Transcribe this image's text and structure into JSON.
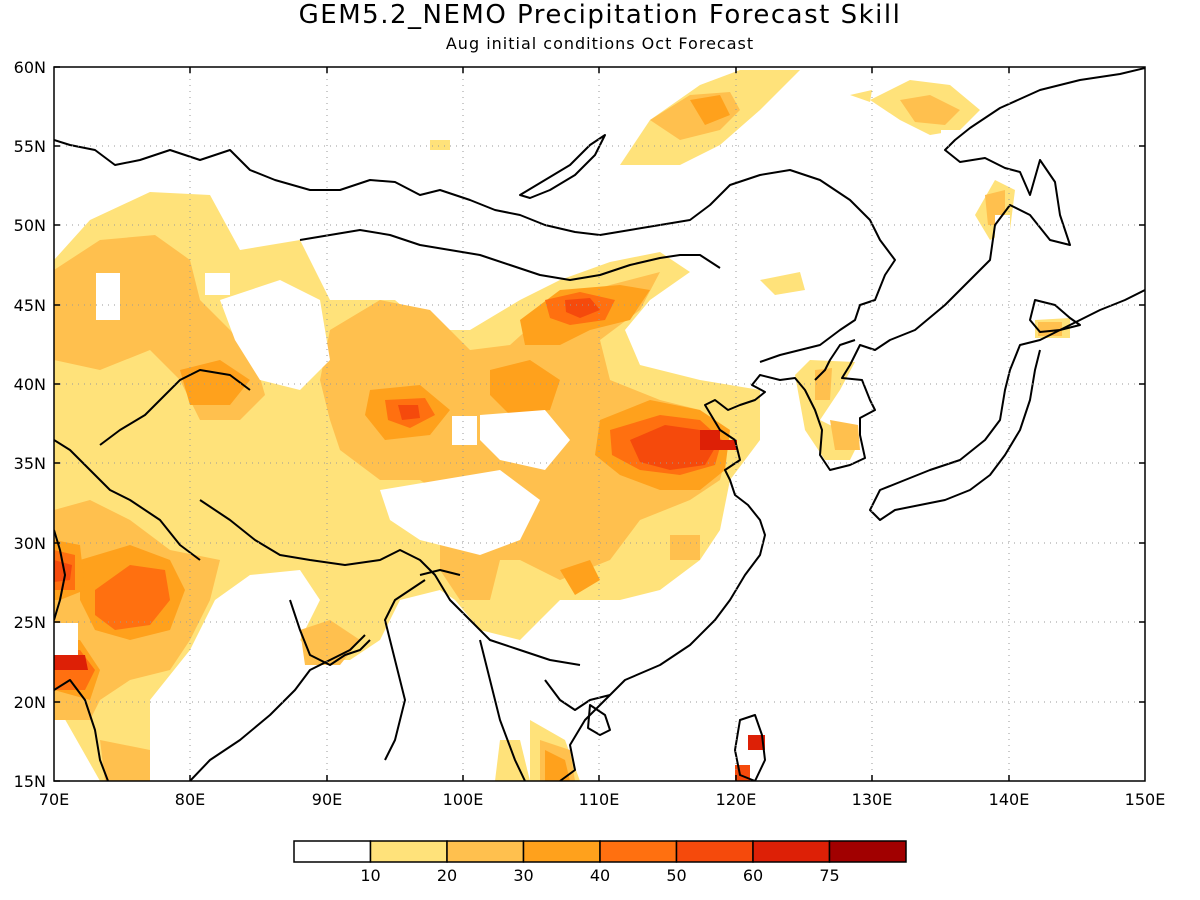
{
  "title": "GEM5.2_NEMO Precipitation Forecast Skill",
  "subtitle": "Aug initial conditions  Oct Forecast",
  "map": {
    "lon_range": [
      70,
      150
    ],
    "lat_range": [
      15,
      60
    ],
    "lat_ticks": [
      "60N",
      "55N",
      "50N",
      "45N",
      "40N",
      "35N",
      "30N",
      "25N",
      "20N",
      "15N"
    ],
    "lon_ticks": [
      "70E",
      "80E",
      "90E",
      "100E",
      "110E",
      "120E",
      "130E",
      "140E",
      "150E"
    ],
    "grid": "dotted"
  },
  "colorbar": {
    "labels": [
      "10",
      "20",
      "30",
      "40",
      "50",
      "60",
      "75"
    ],
    "colors": [
      "#ffffff",
      "#ffe27a",
      "#ffc04e",
      "#ffa11c",
      "#ff7010",
      "#f54a0c",
      "#dd2006",
      "#a10000"
    ]
  }
}
